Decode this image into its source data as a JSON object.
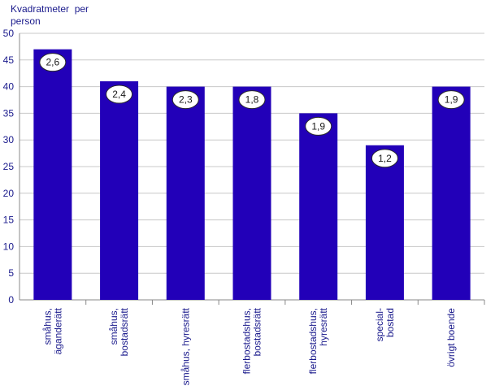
{
  "chart_data": {
    "type": "bar",
    "ylabel": "Kvadratmeter  per\nperson",
    "xlabel": "",
    "title": "",
    "ylim": [
      0,
      50
    ],
    "yticks": [
      0,
      5,
      10,
      15,
      20,
      25,
      30,
      35,
      40,
      45,
      50
    ],
    "grid": true,
    "categories": [
      [
        "småhus,",
        "äganderätt"
      ],
      [
        "småhus,",
        "bostadsrätt"
      ],
      [
        "småhus, hyresrätt"
      ],
      [
        "flerbostadshus,",
        "bostadsrätt"
      ],
      [
        "flerbostadshus,",
        "hyresrätt"
      ],
      [
        "special-",
        "bostad"
      ],
      [
        "övrigt boende"
      ]
    ],
    "values": [
      47,
      41,
      40,
      40,
      35,
      29,
      40
    ],
    "data_labels": [
      "2,6",
      "2,4",
      "2,3",
      "1,8",
      "1,9",
      "1,2",
      "1,9"
    ],
    "colors": {
      "bar": "#2200b8",
      "axis_text": "#1a1a8c",
      "grid": "#c8c8c8",
      "label_bg": "#ffffff"
    }
  }
}
